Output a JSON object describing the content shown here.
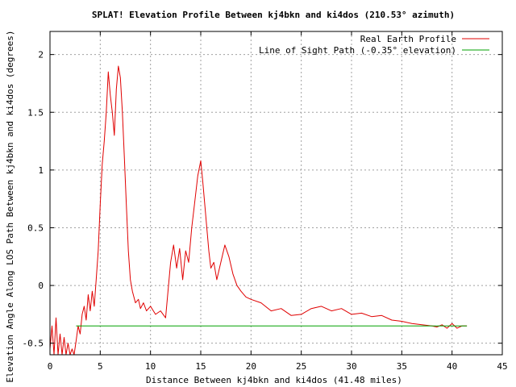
{
  "chart_data": {
    "type": "line",
    "title": "SPLAT! Elevation Profile Between kj4bkn and ki4dos (210.53° azimuth)",
    "xlabel": "Distance Between kj4bkn and ki4dos (41.48 miles)",
    "ylabel": "Elevation Angle Along LOS Path Between kj4bkn and ki4dos (degrees)",
    "xlim": [
      0,
      45
    ],
    "ylim": [
      -0.6,
      2.2
    ],
    "x_ticks": [
      0,
      5,
      10,
      15,
      20,
      25,
      30,
      35,
      40,
      45
    ],
    "x_tick_labels": [
      "0",
      "5",
      "10",
      "15",
      "20",
      "25",
      "30",
      "35",
      "40",
      "45"
    ],
    "y_ticks": [
      -0.5,
      0,
      0.5,
      1,
      1.5,
      2
    ],
    "y_tick_labels": [
      "-0.5",
      "0",
      "0.5",
      "1",
      "1.5",
      "2"
    ],
    "grid": true,
    "legend_position": "top-right",
    "series": [
      {
        "name": "Real Earth Profile",
        "color": "#e00000",
        "x": [
          0,
          0.2,
          0.4,
          0.6,
          0.8,
          1.0,
          1.2,
          1.4,
          1.6,
          1.8,
          2.0,
          2.2,
          2.4,
          2.6,
          2.8,
          3.0,
          3.2,
          3.4,
          3.6,
          3.8,
          4.0,
          4.2,
          4.4,
          4.6,
          4.8,
          5.0,
          5.2,
          5.4,
          5.6,
          5.8,
          6.0,
          6.2,
          6.4,
          6.6,
          6.8,
          7.0,
          7.2,
          7.4,
          7.6,
          7.8,
          8.0,
          8.2,
          8.5,
          8.8,
          9.0,
          9.3,
          9.6,
          10.0,
          10.5,
          11.0,
          11.5,
          12.0,
          12.3,
          12.6,
          12.9,
          13.2,
          13.5,
          13.8,
          14.1,
          14.4,
          14.7,
          15.0,
          15.2,
          15.4,
          15.6,
          15.8,
          16.0,
          16.3,
          16.6,
          17.0,
          17.4,
          17.8,
          18.2,
          18.6,
          19.0,
          19.5,
          20.0,
          21.0,
          22.0,
          23.0,
          24.0,
          25.0,
          26.0,
          27.0,
          28.0,
          29.0,
          30.0,
          31.0,
          32.0,
          33.0,
          34.0,
          35.0,
          36.0,
          37.0,
          38.0,
          38.5,
          39.0,
          39.5,
          40.0,
          40.5,
          41.0,
          41.48
        ],
        "y": [
          -0.55,
          -0.35,
          -0.6,
          -0.28,
          -0.6,
          -0.42,
          -0.6,
          -0.45,
          -0.6,
          -0.5,
          -0.6,
          -0.55,
          -0.6,
          -0.48,
          -0.35,
          -0.42,
          -0.25,
          -0.18,
          -0.3,
          -0.08,
          -0.22,
          -0.05,
          -0.18,
          0.05,
          0.3,
          0.7,
          1.05,
          1.25,
          1.5,
          1.85,
          1.65,
          1.5,
          1.3,
          1.7,
          1.9,
          1.8,
          1.5,
          1.1,
          0.7,
          0.3,
          0.05,
          -0.05,
          -0.15,
          -0.12,
          -0.2,
          -0.15,
          -0.22,
          -0.18,
          -0.25,
          -0.22,
          -0.28,
          0.2,
          0.35,
          0.15,
          0.32,
          0.05,
          0.3,
          0.2,
          0.5,
          0.72,
          0.95,
          1.08,
          0.9,
          0.7,
          0.5,
          0.3,
          0.15,
          0.2,
          0.05,
          0.2,
          0.35,
          0.25,
          0.1,
          0.0,
          -0.05,
          -0.1,
          -0.12,
          -0.15,
          -0.22,
          -0.2,
          -0.26,
          -0.25,
          -0.2,
          -0.18,
          -0.22,
          -0.2,
          -0.25,
          -0.24,
          -0.27,
          -0.26,
          -0.3,
          -0.31,
          -0.33,
          -0.34,
          -0.35,
          -0.36,
          -0.34,
          -0.37,
          -0.33,
          -0.37,
          -0.35,
          -0.35
        ]
      },
      {
        "name": "Line of Sight Path (-0.35° elevation)",
        "color": "#00a000",
        "x": [
          2.6,
          41.48
        ],
        "y": [
          -0.35,
          -0.35
        ]
      }
    ]
  }
}
